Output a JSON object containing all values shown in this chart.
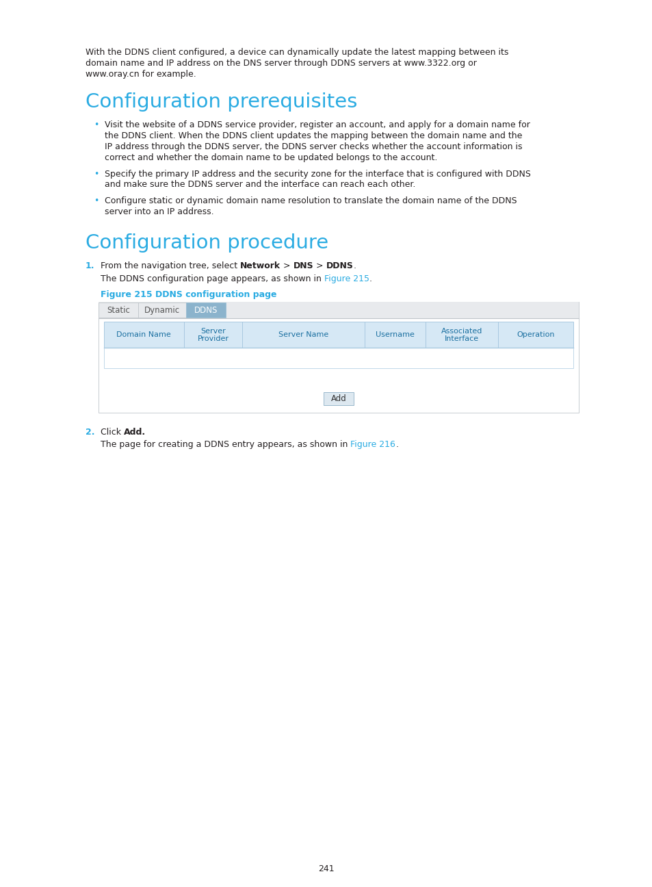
{
  "bg_color": "#ffffff",
  "text_color": "#231f20",
  "cyan_color": "#29abe2",
  "blue_link_color": "#29abe2",
  "bullet_color": "#29abe2",
  "page_number": "241",
  "intro_lines": [
    "With the DDNS client configured, a device can dynamically update the latest mapping between its",
    "domain name and IP address on the DNS server through DDNS servers at www.3322.org or",
    "www.oray.cn for example."
  ],
  "section1_title": "Configuration prerequisites",
  "bullet1_lines": [
    "Visit the website of a DDNS service provider, register an account, and apply for a domain name for",
    "the DDNS client. When the DDNS client updates the mapping between the domain name and the",
    "IP address through the DDNS server, the DDNS server checks whether the account information is",
    "correct and whether the domain name to be updated belongs to the account."
  ],
  "bullet2_lines": [
    "Specify the primary IP address and the security zone for the interface that is configured with DDNS",
    "and make sure the DDNS server and the interface can reach each other."
  ],
  "bullet3_lines": [
    "Configure static or dynamic domain name resolution to translate the domain name of the DDNS",
    "server into an IP address."
  ],
  "section2_title": "Configuration procedure",
  "tab_labels": [
    "Static",
    "Dynamic",
    "DDNS"
  ],
  "tab_active": 2,
  "table_headers": [
    "Domain Name",
    "Server\nProvider",
    "Server Name",
    "Username",
    "Associated\nInterface",
    "Operation"
  ],
  "add_button_text": "Add",
  "figure_caption": "Figure 215 DDNS configuration page"
}
